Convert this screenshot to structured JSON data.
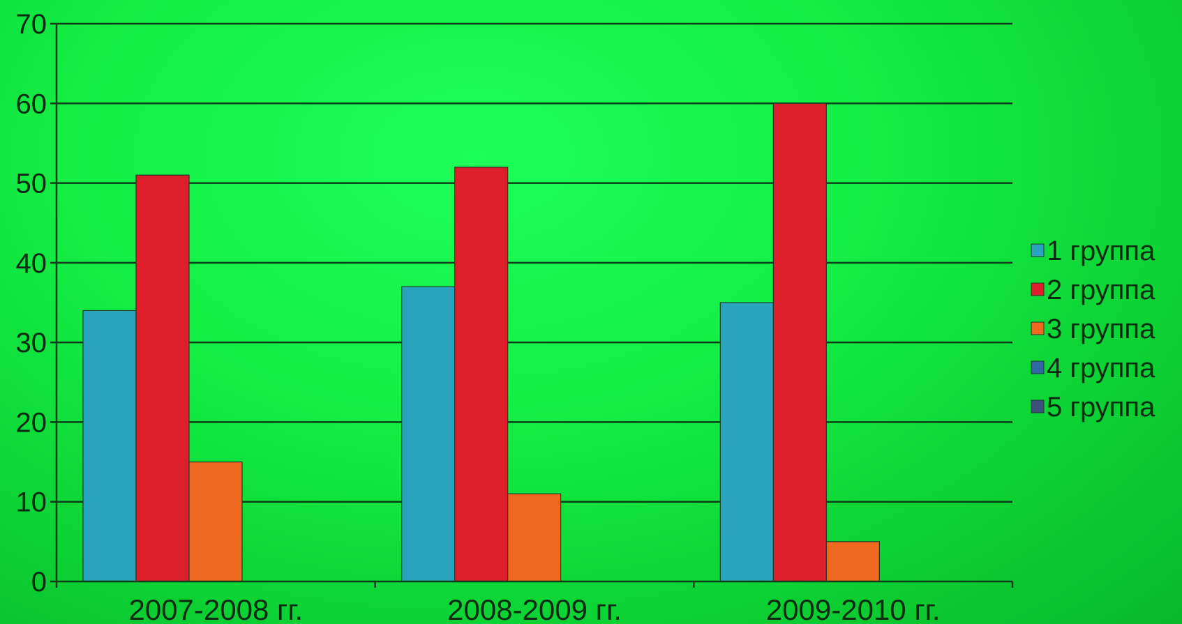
{
  "chart_data": {
    "type": "bar",
    "categories": [
      "2007-2008 гг.",
      "2008-2009 гг.",
      "2009-2010 гг."
    ],
    "series": [
      {
        "name": "1 группа",
        "values": [
          34,
          37,
          35
        ],
        "color": "#2aa3bd"
      },
      {
        "name": "2 группа",
        "values": [
          51,
          52,
          60
        ],
        "color": "#dc1f2a"
      },
      {
        "name": "3 группа",
        "values": [
          15,
          11,
          5
        ],
        "color": "#ee6820"
      },
      {
        "name": "4 группа",
        "values": [
          0,
          0,
          0
        ],
        "color": "#2f67a3"
      },
      {
        "name": "5 группа",
        "values": [
          0,
          0,
          0
        ],
        "color": "#3d4f7a"
      }
    ],
    "yticks": [
      "0",
      "10",
      "20",
      "30",
      "40",
      "50",
      "60",
      "70"
    ],
    "ylim": [
      0,
      70
    ],
    "grid": true,
    "legend": "right",
    "title": "",
    "xlabel": "",
    "ylabel": ""
  }
}
